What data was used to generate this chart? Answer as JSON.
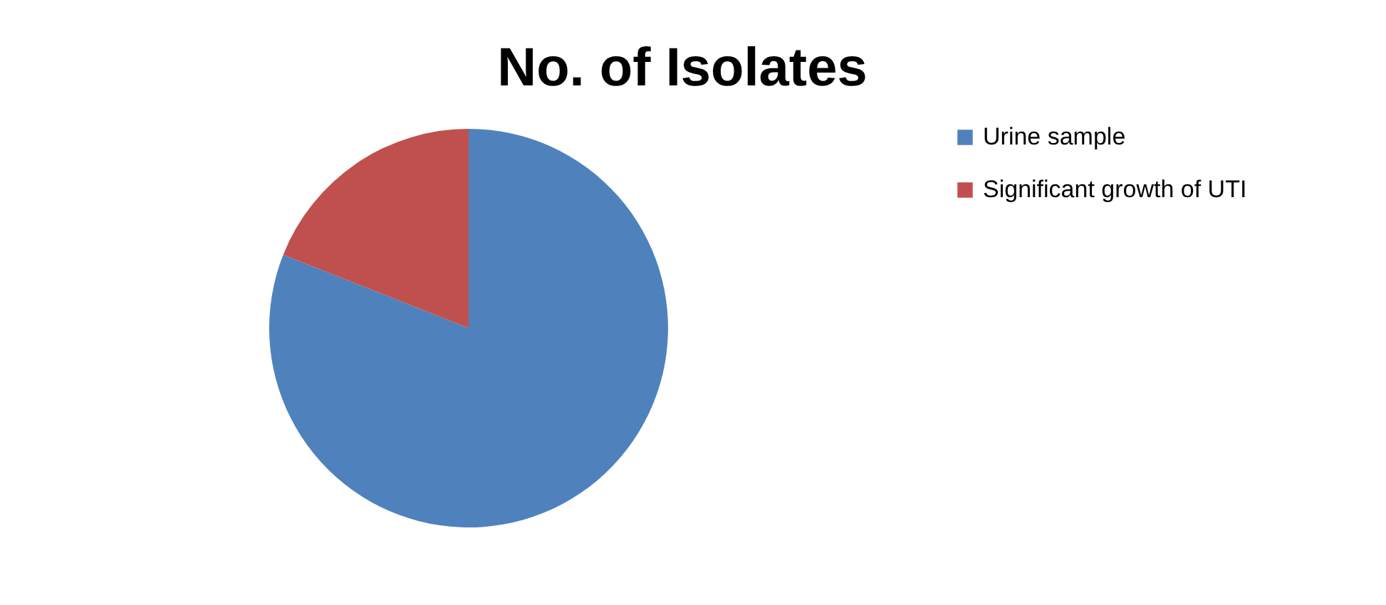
{
  "chart_data": {
    "type": "pie",
    "title": "No. of Isolates",
    "categories": [
      "Urine sample",
      "Significant growth of UTI"
    ],
    "values": [
      81,
      19
    ],
    "colors": [
      "#4f81bd",
      "#c0504d"
    ],
    "legend": "right"
  }
}
